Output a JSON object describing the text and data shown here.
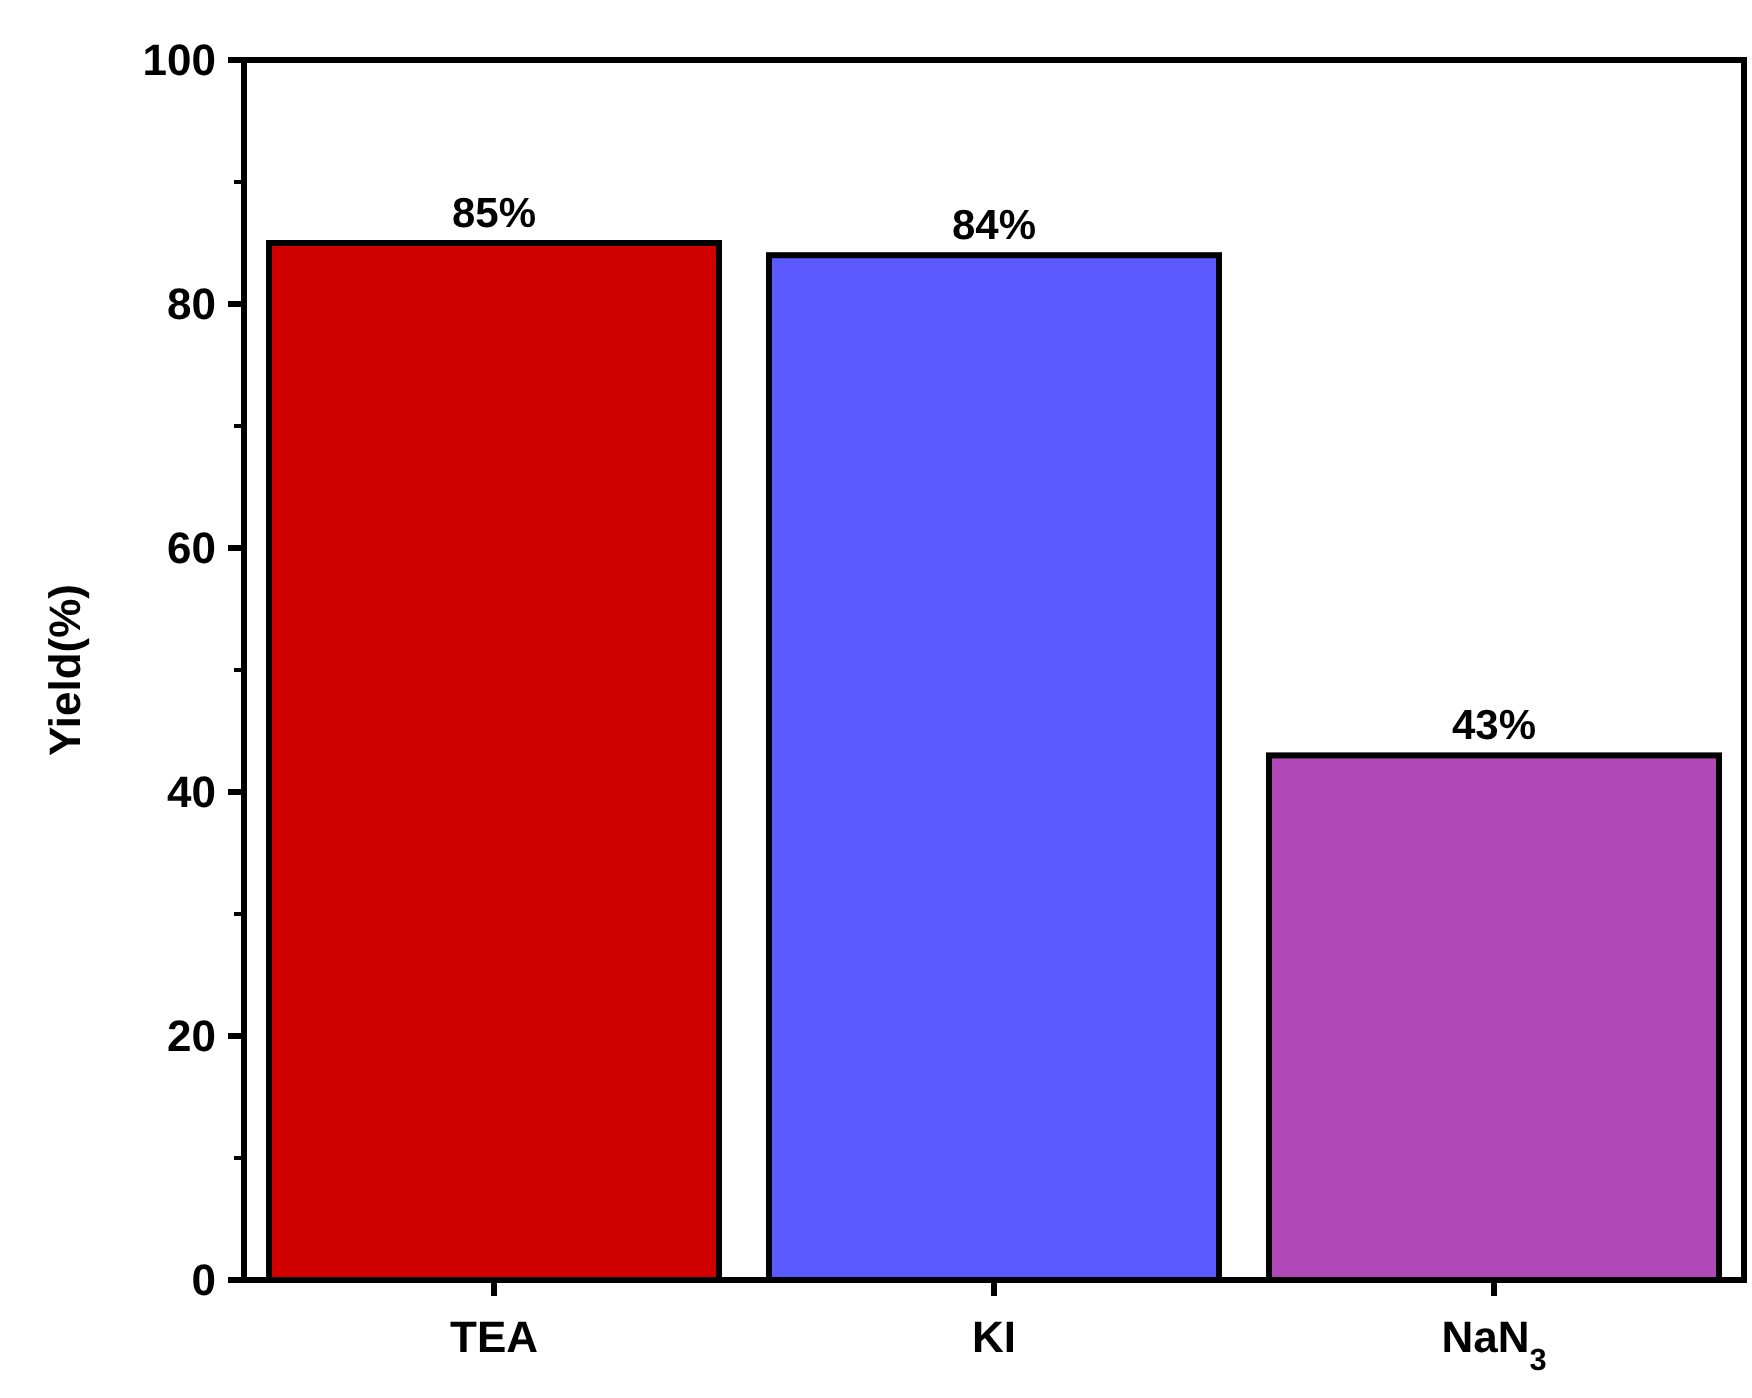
{
  "chart_data": {
    "type": "bar",
    "ylabel": "Yield(%)",
    "categories": [
      "TEA",
      "KI",
      "NaN$_{3}$"
    ],
    "values": [
      85,
      84,
      43
    ],
    "colors": [
      "#d00000",
      "#5a5aff",
      "#b048b8"
    ],
    "value_labels": [
      "85%",
      "84%",
      "43%"
    ],
    "ylim": [
      0,
      100
    ],
    "yticks": [
      0,
      20,
      40,
      60,
      80,
      100
    ],
    "grid": false
  }
}
